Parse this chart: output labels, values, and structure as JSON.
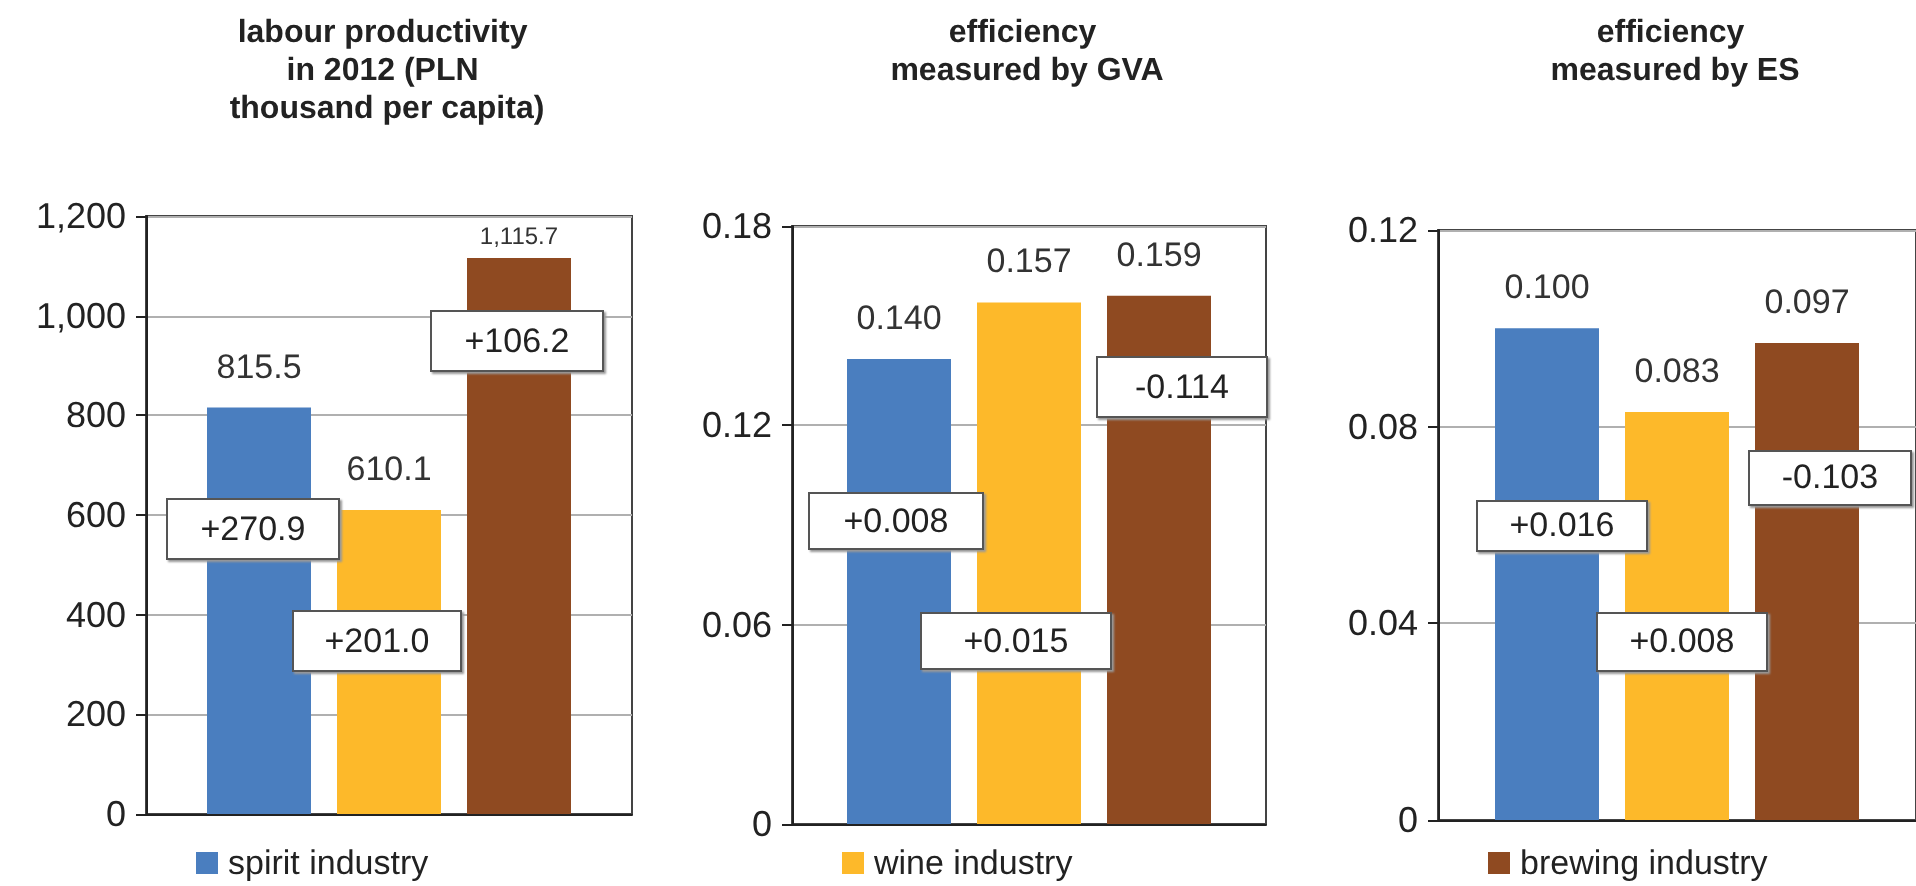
{
  "chart_data": [
    {
      "type": "bar",
      "title": "labour productivity in 2012 (PLN thousand per capita)",
      "categories": [
        null
      ],
      "series": [
        {
          "name": "spirit industry",
          "color": "#4a7ebf",
          "values": [
            815.5
          ],
          "value_labels": [
            "815.5"
          ]
        },
        {
          "color": "#fdb92a",
          "values": [
            610.1
          ],
          "value_labels": [
            "610.1"
          ]
        },
        {
          "color": "#8f4a21",
          "values": [
            1115.7
          ],
          "value_labels": [
            "1,115.7"
          ]
        }
      ],
      "ylim": [
        0,
        1200
      ],
      "yticks": [
        0,
        200,
        400,
        600,
        800,
        {
          "value": 1000,
          "label": "1,000"
        },
        {
          "value": 1200,
          "label": "1,200"
        }
      ],
      "grid": "y",
      "legend": "bottom",
      "annotations": [
        "+270.9",
        "+201.0",
        "+106.2"
      ]
    },
    {
      "type": "bar",
      "title": "efficiency measured by GVA",
      "categories": [
        null
      ],
      "series": [
        {
          "color": "#4a7ebf",
          "values": [
            0.14
          ],
          "value_labels": [
            "0.140"
          ]
        },
        {
          "name": "wine industry",
          "color": "#fdb92a",
          "values": [
            0.157
          ],
          "value_labels": [
            "0.157"
          ]
        },
        {
          "color": "#8f4a21",
          "values": [
            0.159
          ],
          "value_labels": [
            "0.159"
          ]
        }
      ],
      "ylim": [
        0,
        0.18
      ],
      "yticks": [
        0,
        0.06,
        0.12,
        0.18
      ],
      "grid": "y",
      "legend": "bottom",
      "annotations": [
        "+0.008",
        "+0.015",
        "-0.114"
      ]
    },
    {
      "type": "bar",
      "title": "efficiency measured by ES",
      "categories": [
        null
      ],
      "series": [
        {
          "color": "#4a7ebf",
          "values": [
            0.1
          ],
          "value_labels": [
            "0.100"
          ]
        },
        {
          "color": "#fdb92a",
          "values": [
            0.083
          ],
          "value_labels": [
            "0.083"
          ]
        },
        {
          "name": "brewing industry",
          "color": "#8f4a21",
          "values": [
            0.097
          ],
          "value_labels": [
            "0.097"
          ]
        }
      ],
      "ylim": [
        0,
        0.12
      ],
      "yticks": [
        0,
        0.04,
        0.08,
        0.12
      ],
      "grid": "y",
      "legend": "bottom",
      "annotations": [
        "+0.016",
        "+0.008",
        "-0.103"
      ]
    }
  ]
}
